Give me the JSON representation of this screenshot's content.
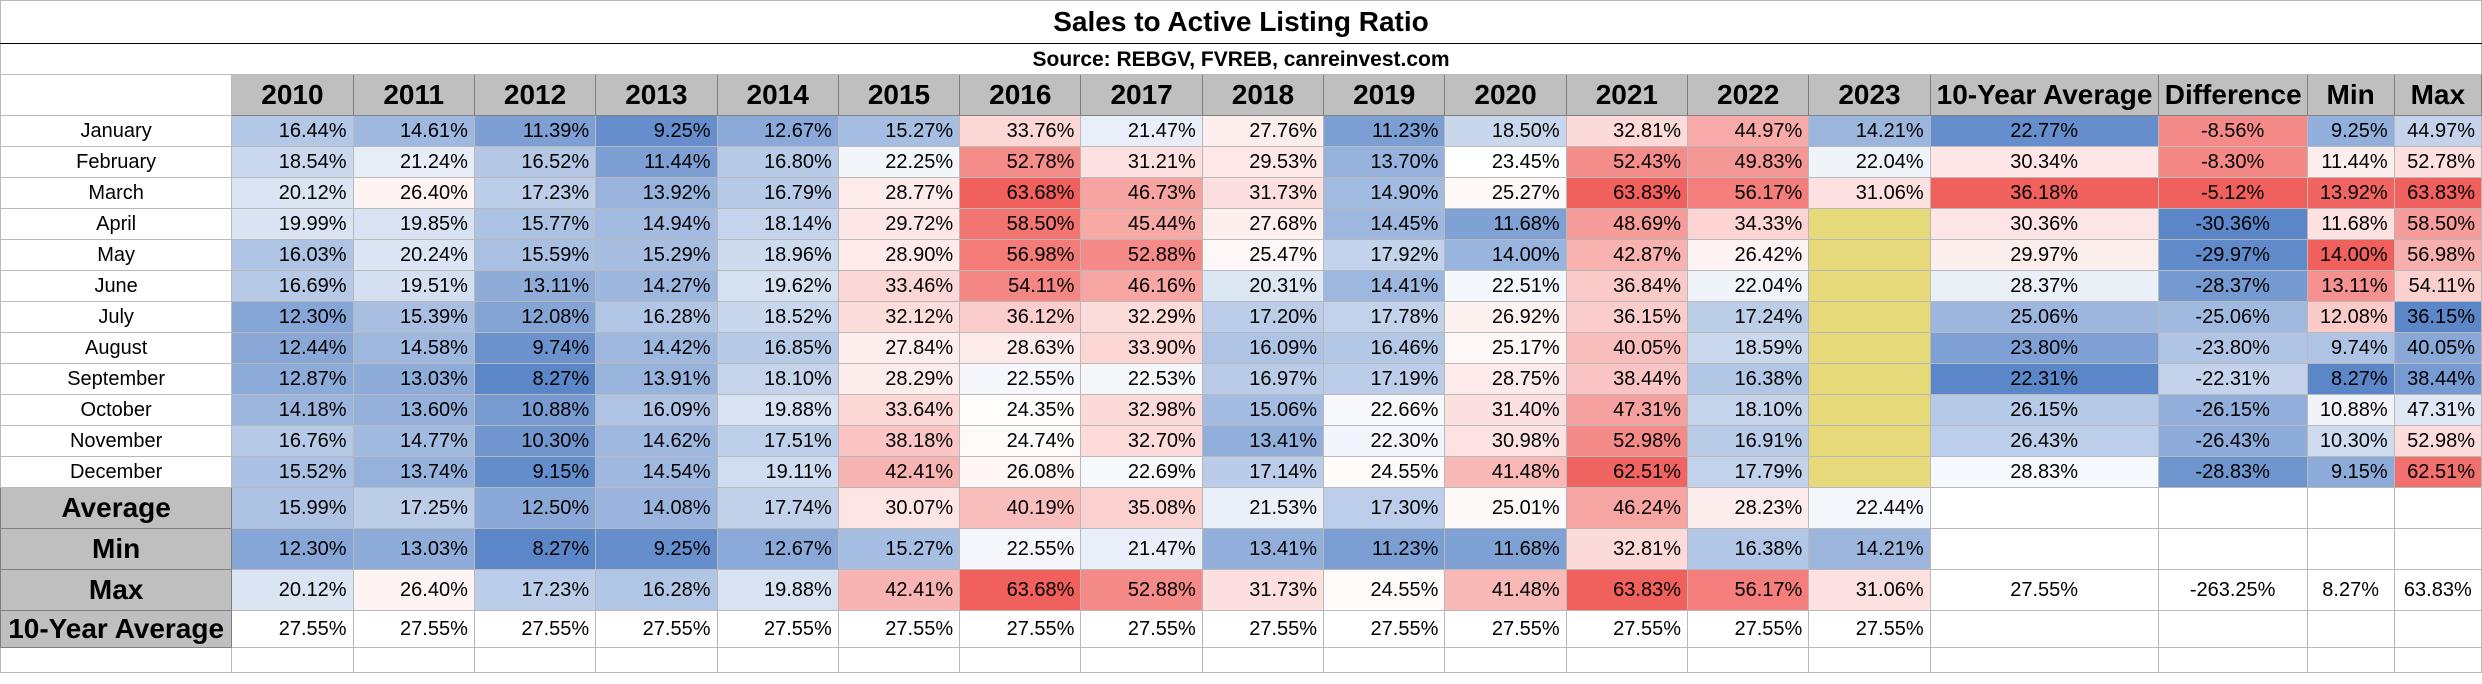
{
  "title": "Sales to Active Listing Ratio",
  "source": "Source: REBGV, FVREB, canreinvest.com",
  "colors": {
    "low": "#5b86c8",
    "mid": "#ffffff",
    "high": "#f0605c",
    "pending": "#e6d97a",
    "header_gray": "#bfbfbf"
  },
  "chart_data": {
    "type": "table",
    "title": "Sales to Active Listing Ratio",
    "subtitle": "Source: REBGV, FVREB, canreinvest.com",
    "columns": [
      "2010",
      "2011",
      "2012",
      "2013",
      "2014",
      "2015",
      "2016",
      "2017",
      "2018",
      "2019",
      "2020",
      "2021",
      "2022",
      "2023",
      "10-Year Average",
      "Difference",
      "Min",
      "Max"
    ],
    "months": [
      {
        "label": "January",
        "values": [
          "16.44%",
          "14.61%",
          "11.39%",
          "9.25%",
          "12.67%",
          "15.27%",
          "33.76%",
          "21.47%",
          "27.76%",
          "11.23%",
          "18.50%",
          "32.81%",
          "44.97%",
          "14.21%",
          "22.77%",
          "-8.56%",
          "9.25%",
          "44.97%"
        ]
      },
      {
        "label": "February",
        "values": [
          "18.54%",
          "21.24%",
          "16.52%",
          "11.44%",
          "16.80%",
          "22.25%",
          "52.78%",
          "31.21%",
          "29.53%",
          "13.70%",
          "23.45%",
          "52.43%",
          "49.83%",
          "22.04%",
          "30.34%",
          "-8.30%",
          "11.44%",
          "52.78%"
        ]
      },
      {
        "label": "March",
        "values": [
          "20.12%",
          "26.40%",
          "17.23%",
          "13.92%",
          "16.79%",
          "28.77%",
          "63.68%",
          "46.73%",
          "31.73%",
          "14.90%",
          "25.27%",
          "63.83%",
          "56.17%",
          "31.06%",
          "36.18%",
          "-5.12%",
          "13.92%",
          "63.83%"
        ]
      },
      {
        "label": "April",
        "values": [
          "19.99%",
          "19.85%",
          "15.77%",
          "14.94%",
          "18.14%",
          "29.72%",
          "58.50%",
          "45.44%",
          "27.68%",
          "14.45%",
          "11.68%",
          "48.69%",
          "34.33%",
          "",
          "30.36%",
          "-30.36%",
          "11.68%",
          "58.50%"
        ]
      },
      {
        "label": "May",
        "values": [
          "16.03%",
          "20.24%",
          "15.59%",
          "15.29%",
          "18.96%",
          "28.90%",
          "56.98%",
          "52.88%",
          "25.47%",
          "17.92%",
          "14.00%",
          "42.87%",
          "26.42%",
          "",
          "29.97%",
          "-29.97%",
          "14.00%",
          "56.98%"
        ]
      },
      {
        "label": "June",
        "values": [
          "16.69%",
          "19.51%",
          "13.11%",
          "14.27%",
          "19.62%",
          "33.46%",
          "54.11%",
          "46.16%",
          "20.31%",
          "14.41%",
          "22.51%",
          "36.84%",
          "22.04%",
          "",
          "28.37%",
          "-28.37%",
          "13.11%",
          "54.11%"
        ]
      },
      {
        "label": "July",
        "values": [
          "12.30%",
          "15.39%",
          "12.08%",
          "16.28%",
          "18.52%",
          "32.12%",
          "36.12%",
          "32.29%",
          "17.20%",
          "17.78%",
          "26.92%",
          "36.15%",
          "17.24%",
          "",
          "25.06%",
          "-25.06%",
          "12.08%",
          "36.15%"
        ]
      },
      {
        "label": "August",
        "values": [
          "12.44%",
          "14.58%",
          "9.74%",
          "14.42%",
          "16.85%",
          "27.84%",
          "28.63%",
          "33.90%",
          "16.09%",
          "16.46%",
          "25.17%",
          "40.05%",
          "18.59%",
          "",
          "23.80%",
          "-23.80%",
          "9.74%",
          "40.05%"
        ]
      },
      {
        "label": "September",
        "values": [
          "12.87%",
          "13.03%",
          "8.27%",
          "13.91%",
          "18.10%",
          "28.29%",
          "22.55%",
          "22.53%",
          "16.97%",
          "17.19%",
          "28.75%",
          "38.44%",
          "16.38%",
          "",
          "22.31%",
          "-22.31%",
          "8.27%",
          "38.44%"
        ]
      },
      {
        "label": "October",
        "values": [
          "14.18%",
          "13.60%",
          "10.88%",
          "16.09%",
          "19.88%",
          "33.64%",
          "24.35%",
          "32.98%",
          "15.06%",
          "22.66%",
          "31.40%",
          "47.31%",
          "18.10%",
          "",
          "26.15%",
          "-26.15%",
          "10.88%",
          "47.31%"
        ]
      },
      {
        "label": "November",
        "values": [
          "16.76%",
          "14.77%",
          "10.30%",
          "14.62%",
          "17.51%",
          "38.18%",
          "24.74%",
          "32.70%",
          "13.41%",
          "22.30%",
          "30.98%",
          "52.98%",
          "16.91%",
          "",
          "26.43%",
          "-26.43%",
          "10.30%",
          "52.98%"
        ]
      },
      {
        "label": "December",
        "values": [
          "15.52%",
          "13.74%",
          "9.15%",
          "14.54%",
          "19.11%",
          "42.41%",
          "26.08%",
          "22.69%",
          "17.14%",
          "24.55%",
          "41.48%",
          "62.51%",
          "17.79%",
          "",
          "28.83%",
          "-28.83%",
          "9.15%",
          "62.51%"
        ]
      }
    ],
    "summary": [
      {
        "label": "Average",
        "values": [
          "15.99%",
          "17.25%",
          "12.50%",
          "14.08%",
          "17.74%",
          "30.07%",
          "40.19%",
          "35.08%",
          "21.53%",
          "17.30%",
          "25.01%",
          "46.24%",
          "28.23%",
          "22.44%",
          "",
          "",
          "",
          ""
        ]
      },
      {
        "label": "Min",
        "values": [
          "12.30%",
          "13.03%",
          "8.27%",
          "9.25%",
          "12.67%",
          "15.27%",
          "22.55%",
          "21.47%",
          "13.41%",
          "11.23%",
          "11.68%",
          "32.81%",
          "16.38%",
          "14.21%",
          "",
          "",
          "",
          ""
        ]
      },
      {
        "label": "Max",
        "values": [
          "20.12%",
          "26.40%",
          "17.23%",
          "16.28%",
          "19.88%",
          "42.41%",
          "63.68%",
          "52.88%",
          "31.73%",
          "24.55%",
          "41.48%",
          "63.83%",
          "56.17%",
          "31.06%",
          "27.55%",
          "-263.25%",
          "8.27%",
          "63.83%"
        ]
      }
    ],
    "ten_year_average": {
      "label": "10-Year Average",
      "values": [
        "27.55%",
        "27.55%",
        "27.55%",
        "27.55%",
        "27.55%",
        "27.55%",
        "27.55%",
        "27.55%",
        "27.55%",
        "27.55%",
        "27.55%",
        "27.55%",
        "27.55%",
        "27.55%"
      ]
    }
  }
}
